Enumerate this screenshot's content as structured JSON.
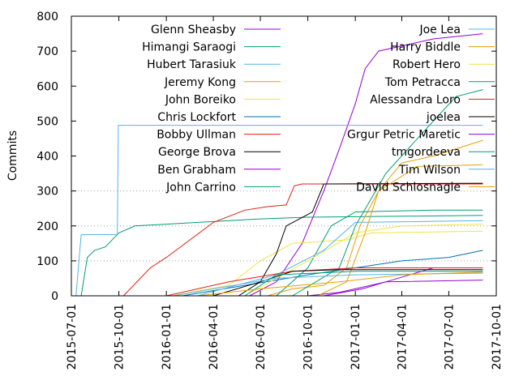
{
  "chart_data": {
    "type": "line",
    "title": "",
    "xlabel": "",
    "ylabel": "Commits",
    "x_ticks": [
      "2015-07-01",
      "2015-10-01",
      "2016-01-01",
      "2016-04-01",
      "2016-07-01",
      "2016-10-01",
      "2017-01-01",
      "2017-04-01",
      "2017-07-01",
      "2017-10-01"
    ],
    "y_ticks": [
      0,
      100,
      200,
      300,
      400,
      500,
      600,
      700,
      800
    ],
    "xlim": [
      "2015-07-01",
      "2017-10-01"
    ],
    "ylim": [
      0,
      800
    ],
    "grid": "horizontal dotted lines at 100, 200, 300",
    "legend": "inside, top, two columns",
    "series": [
      {
        "name": "Glenn Sheasby",
        "color": "#9400d3",
        "points": [
          [
            "2016-06-10",
            0
          ],
          [
            "2016-08-01",
            40
          ],
          [
            "2016-09-20",
            150
          ],
          [
            "2016-11-01",
            300
          ],
          [
            "2016-12-01",
            420
          ],
          [
            "2017-01-01",
            550
          ],
          [
            "2017-01-20",
            650
          ],
          [
            "2017-02-15",
            700
          ],
          [
            "2017-06-01",
            735
          ],
          [
            "2017-09-05",
            750
          ]
        ]
      },
      {
        "name": "Himangi Saraogi",
        "color": "#009e73",
        "points": [
          [
            "2015-07-20",
            0
          ],
          [
            "2015-08-01",
            110
          ],
          [
            "2015-08-15",
            130
          ],
          [
            "2015-09-05",
            140
          ],
          [
            "2015-10-01",
            180
          ],
          [
            "2015-11-01",
            200
          ],
          [
            "2016-01-01",
            205
          ],
          [
            "2016-07-01",
            220
          ],
          [
            "2016-10-01",
            225
          ],
          [
            "2017-09-05",
            230
          ]
        ]
      },
      {
        "name": "Hubert Tarasiuk",
        "color": "#56b4e9",
        "points": [
          [
            "2015-07-10",
            0
          ],
          [
            "2015-07-20",
            175
          ],
          [
            "2015-09-28",
            175
          ],
          [
            "2015-09-30",
            488
          ],
          [
            "2017-09-05",
            488
          ]
        ]
      },
      {
        "name": "Jeremy Kong",
        "color": "#e69f00",
        "points": [
          [
            "2016-07-15",
            0
          ],
          [
            "2016-09-01",
            20
          ],
          [
            "2016-11-01",
            30
          ],
          [
            "2016-12-15",
            80
          ],
          [
            "2017-01-10",
            200
          ],
          [
            "2017-02-15",
            300
          ],
          [
            "2017-04-01",
            380
          ],
          [
            "2017-06-01",
            400
          ],
          [
            "2017-09-05",
            445
          ]
        ]
      },
      {
        "name": "John Boreiko",
        "color": "#f0e442",
        "points": [
          [
            "2016-01-10",
            0
          ],
          [
            "2016-05-01",
            30
          ],
          [
            "2016-07-01",
            100
          ],
          [
            "2016-09-01",
            150
          ],
          [
            "2016-12-15",
            160
          ],
          [
            "2017-02-01",
            180
          ],
          [
            "2017-09-05",
            185
          ]
        ]
      },
      {
        "name": "Chris Lockfort",
        "color": "#0072b2",
        "points": [
          [
            "2016-02-01",
            0
          ],
          [
            "2016-06-01",
            30
          ],
          [
            "2016-10-01",
            60
          ],
          [
            "2017-01-01",
            80
          ],
          [
            "2017-04-01",
            100
          ],
          [
            "2017-07-01",
            110
          ],
          [
            "2017-09-05",
            130
          ]
        ]
      },
      {
        "name": "Bobby Ullman",
        "color": "#e51e10",
        "points": [
          [
            "2015-10-10",
            0
          ],
          [
            "2015-12-01",
            80
          ],
          [
            "2016-01-01",
            110
          ],
          [
            "2016-04-01",
            210
          ],
          [
            "2016-06-01",
            245
          ],
          [
            "2016-07-15",
            255
          ],
          [
            "2016-08-20",
            260
          ],
          [
            "2016-09-05",
            315
          ],
          [
            "2016-09-20",
            320
          ],
          [
            "2017-09-05",
            320
          ]
        ]
      },
      {
        "name": "George Brova",
        "color": "#000000",
        "points": [
          [
            "2016-05-20",
            0
          ],
          [
            "2016-07-01",
            40
          ],
          [
            "2016-08-01",
            120
          ],
          [
            "2016-08-20",
            200
          ],
          [
            "2016-10-10",
            240
          ],
          [
            "2016-11-01",
            320
          ],
          [
            "2017-09-05",
            322
          ]
        ]
      },
      {
        "name": "Ben Grabham",
        "color": "#9400d3",
        "points": [
          [
            "2016-10-01",
            0
          ],
          [
            "2016-12-01",
            10
          ],
          [
            "2017-01-01",
            20
          ],
          [
            "2017-03-01",
            40
          ],
          [
            "2017-06-01",
            80
          ],
          [
            "2017-09-05",
            80
          ]
        ]
      },
      {
        "name": "John Carrino",
        "color": "#009e73",
        "points": [
          [
            "2016-08-01",
            0
          ],
          [
            "2016-10-01",
            80
          ],
          [
            "2016-11-15",
            200
          ],
          [
            "2017-01-01",
            240
          ],
          [
            "2017-06-01",
            245
          ],
          [
            "2017-09-05",
            245
          ]
        ]
      },
      {
        "name": "Joe Lea",
        "color": "#56b4e9",
        "points": [
          [
            "2016-03-01",
            0
          ],
          [
            "2016-05-15",
            30
          ],
          [
            "2016-08-01",
            60
          ],
          [
            "2016-11-01",
            130
          ],
          [
            "2017-01-01",
            210
          ],
          [
            "2017-09-05",
            215
          ]
        ]
      },
      {
        "name": "Harry Biddle",
        "color": "#e69f00",
        "points": [
          [
            "2016-10-20",
            0
          ],
          [
            "2016-12-15",
            40
          ],
          [
            "2017-01-20",
            180
          ],
          [
            "2017-02-15",
            300
          ],
          [
            "2017-05-01",
            370
          ],
          [
            "2017-09-05",
            375
          ]
        ]
      },
      {
        "name": "Robert Hero",
        "color": "#f0e442",
        "points": [
          [
            "2016-06-01",
            0
          ],
          [
            "2016-10-01",
            100
          ],
          [
            "2017-01-01",
            180
          ],
          [
            "2017-04-01",
            200
          ],
          [
            "2017-09-05",
            205
          ]
        ]
      },
      {
        "name": "Tom Petracca",
        "color": "#009e73",
        "points": [
          [
            "2016-09-01",
            0
          ],
          [
            "2016-12-01",
            80
          ],
          [
            "2017-01-01",
            200
          ],
          [
            "2017-03-01",
            350
          ],
          [
            "2017-06-01",
            500
          ],
          [
            "2017-07-15",
            570
          ],
          [
            "2017-09-05",
            590
          ]
        ]
      },
      {
        "name": "Alessandra Loro",
        "color": "#e51e10",
        "points": [
          [
            "2016-01-01",
            0
          ],
          [
            "2016-05-01",
            40
          ],
          [
            "2016-09-01",
            70
          ],
          [
            "2017-01-01",
            80
          ],
          [
            "2017-09-05",
            80
          ]
        ]
      },
      {
        "name": "joelea",
        "color": "#000000",
        "points": [
          [
            "2016-04-01",
            0
          ],
          [
            "2016-07-01",
            40
          ],
          [
            "2016-09-01",
            70
          ],
          [
            "2016-12-01",
            75
          ],
          [
            "2017-09-05",
            75
          ]
        ]
      },
      {
        "name": "Grgur Petric Maretic",
        "color": "#9400d3",
        "points": [
          [
            "2016-11-01",
            0
          ],
          [
            "2017-01-15",
            20
          ],
          [
            "2017-03-01",
            40
          ],
          [
            "2017-09-05",
            45
          ]
        ]
      },
      {
        "name": "tmgordeeva",
        "color": "#009e73",
        "points": [
          [
            "2016-06-01",
            0
          ],
          [
            "2016-08-01",
            60
          ],
          [
            "2017-01-01",
            70
          ],
          [
            "2017-09-05",
            70
          ]
        ]
      },
      {
        "name": "Tim Wilson",
        "color": "#56b4e9",
        "points": [
          [
            "2016-01-15",
            0
          ],
          [
            "2016-04-01",
            20
          ],
          [
            "2016-08-01",
            50
          ],
          [
            "2017-01-01",
            60
          ],
          [
            "2017-09-05",
            65
          ]
        ]
      },
      {
        "name": "David Schlosnagle",
        "color": "#e69f00",
        "points": [
          [
            "2016-03-01",
            0
          ],
          [
            "2016-07-01",
            20
          ],
          [
            "2016-12-01",
            40
          ],
          [
            "2017-04-01",
            60
          ],
          [
            "2017-09-05",
            68
          ]
        ]
      }
    ]
  }
}
